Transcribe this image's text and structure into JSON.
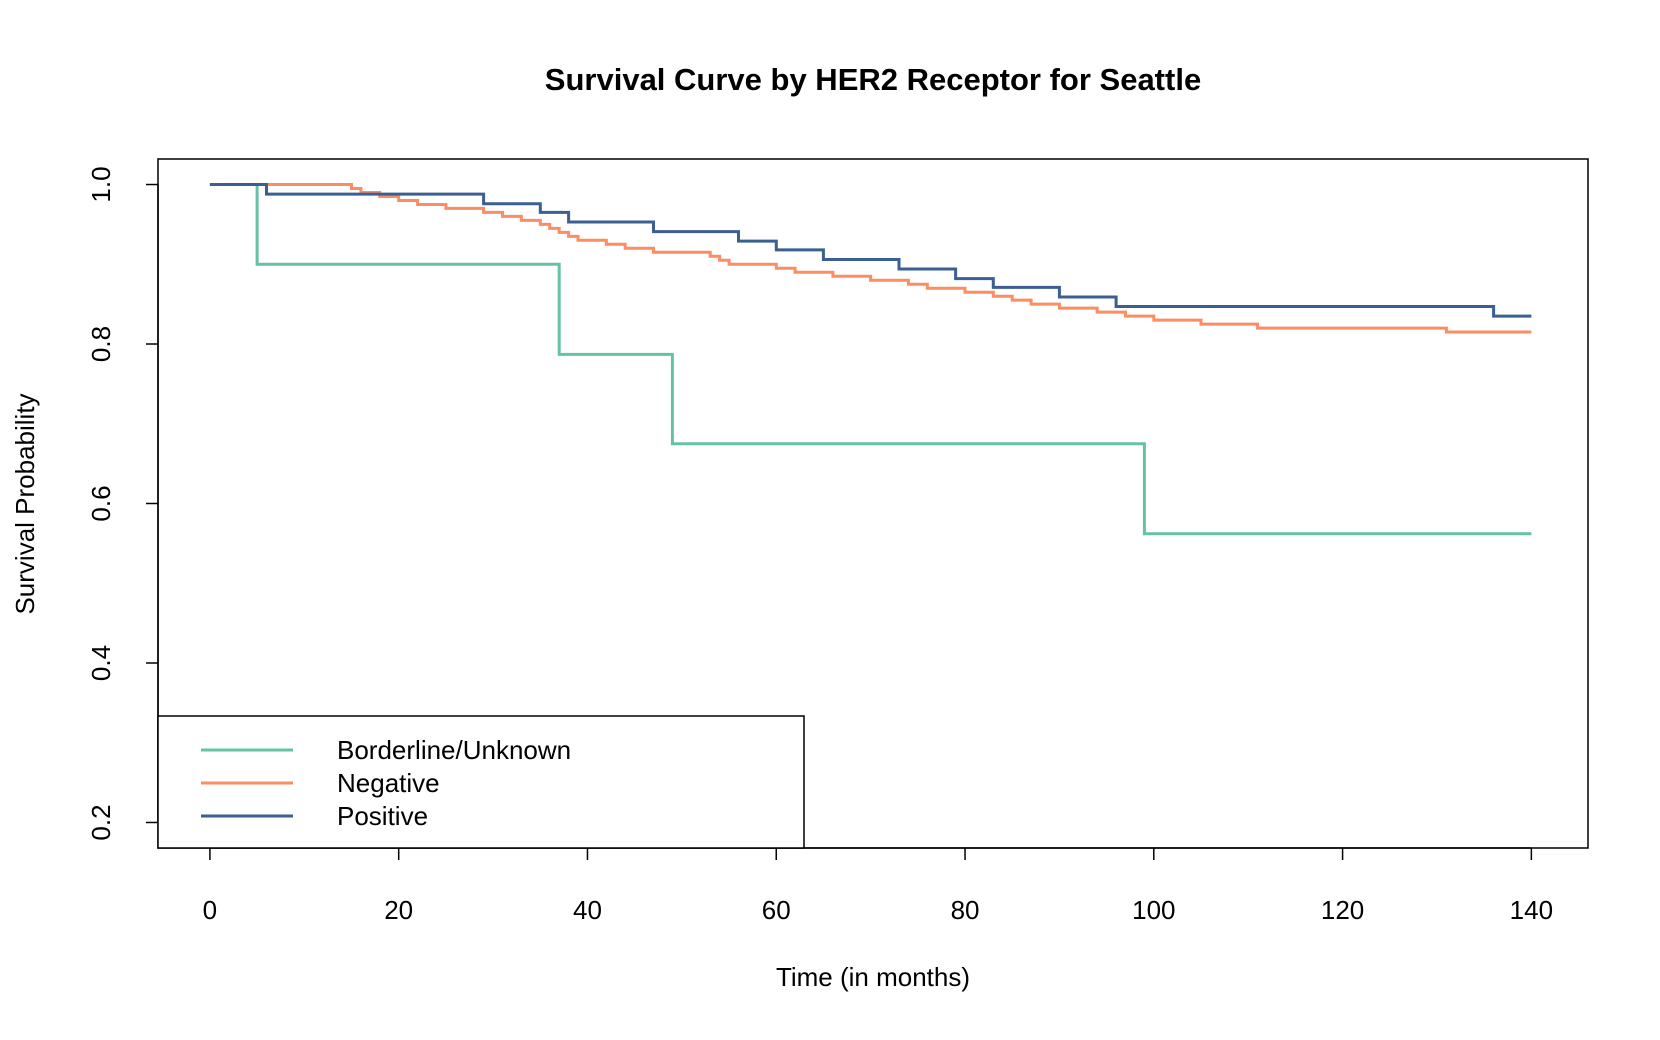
{
  "chart_data": {
    "type": "line",
    "step": true,
    "title": "Survival Curve by HER2 Receptor for Seattle",
    "xlabel": "Time (in months)",
    "ylabel": "Survival Probability",
    "xlim": [
      -5.5,
      146
    ],
    "ylim": [
      0.168,
      1.032
    ],
    "xticks": [
      0,
      20,
      40,
      60,
      80,
      100,
      120,
      140
    ],
    "yticks": [
      0.2,
      0.4,
      0.6,
      0.8,
      1.0
    ],
    "xtick_labels": [
      "0",
      "20",
      "40",
      "60",
      "80",
      "100",
      "120",
      "140"
    ],
    "ytick_labels": [
      "0.2",
      "0.4",
      "0.6",
      "0.8",
      "1.0"
    ],
    "grid": false,
    "legend_position": "bottom-left",
    "series": [
      {
        "name": "Borderline/Unknown",
        "color": "#66C2A5",
        "x": [
          0,
          5,
          37,
          49,
          99,
          140
        ],
        "y": [
          1.0,
          0.9,
          0.787,
          0.675,
          0.562,
          0.562
        ]
      },
      {
        "name": "Negative",
        "color": "#FC8D62",
        "x": [
          0,
          15,
          16,
          18,
          20,
          22,
          25,
          29,
          31,
          33,
          35,
          36,
          37,
          38,
          39,
          42,
          44,
          47,
          53,
          54,
          55,
          60,
          62,
          66,
          70,
          74,
          76,
          80,
          83,
          85,
          87,
          90,
          94,
          97,
          100,
          105,
          111,
          131,
          140
        ],
        "y": [
          1.0,
          0.995,
          0.99,
          0.985,
          0.98,
          0.975,
          0.97,
          0.965,
          0.96,
          0.955,
          0.95,
          0.945,
          0.94,
          0.935,
          0.93,
          0.925,
          0.92,
          0.915,
          0.91,
          0.905,
          0.9,
          0.895,
          0.89,
          0.885,
          0.88,
          0.875,
          0.87,
          0.865,
          0.86,
          0.855,
          0.85,
          0.845,
          0.84,
          0.835,
          0.83,
          0.825,
          0.82,
          0.815,
          0.815
        ]
      },
      {
        "name": "Positive",
        "color": "#3B5F91",
        "x": [
          0,
          6,
          29,
          35,
          38,
          47,
          56,
          60,
          65,
          73,
          79,
          83,
          90,
          96,
          136,
          140
        ],
        "y": [
          1.0,
          0.988,
          0.976,
          0.965,
          0.953,
          0.941,
          0.929,
          0.918,
          0.906,
          0.894,
          0.882,
          0.871,
          0.859,
          0.847,
          0.835,
          0.835
        ]
      }
    ]
  }
}
